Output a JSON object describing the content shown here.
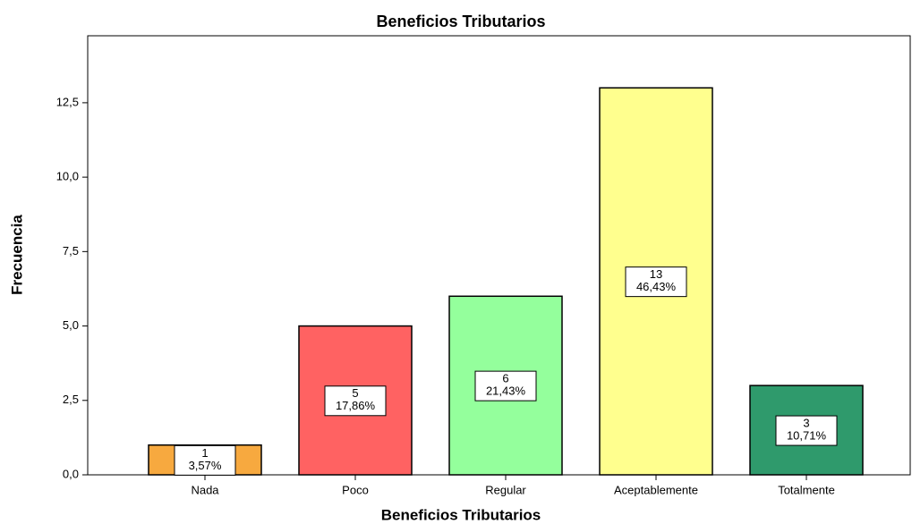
{
  "chart_data": {
    "type": "bar",
    "title": "Beneficios Tributarios",
    "x_label": "Beneficios Tributarios",
    "y_label": "Frecuencia",
    "categories": [
      "Nada",
      "Poco",
      "Regular",
      "Aceptablemente",
      "Totalmente"
    ],
    "values": [
      1,
      5,
      6,
      13,
      3
    ],
    "percent_labels": [
      "3,57%",
      "17,86%",
      "21,43%",
      "46,43%",
      "10,71%"
    ],
    "colors": [
      "#f7a93f",
      "#ff6262",
      "#94ff9c",
      "#ffff8e",
      "#2f9a6c"
    ],
    "ylim": [
      0,
      14.75
    ],
    "yticks": [
      {
        "value": 0,
        "label": "0,0"
      },
      {
        "value": 2.5,
        "label": "2,5"
      },
      {
        "value": 5,
        "label": "5,0"
      },
      {
        "value": 7.5,
        "label": "7,5"
      },
      {
        "value": 10,
        "label": "10,0"
      },
      {
        "value": 12.5,
        "label": "12,5"
      }
    ],
    "grid": false
  }
}
